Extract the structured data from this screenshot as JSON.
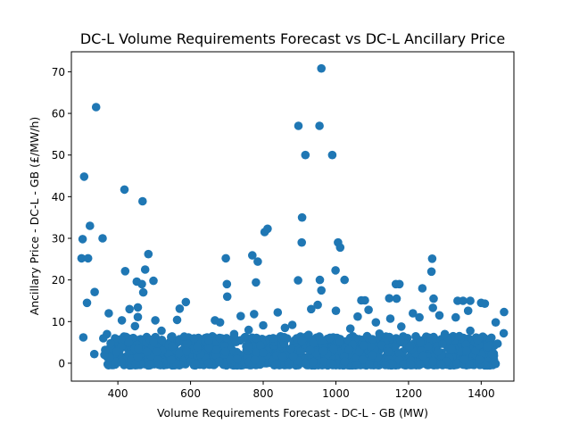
{
  "chart_data": {
    "type": "scatter",
    "title": "DC-L Volume Requirements Forecast vs DC-L Ancillary Price",
    "xlabel": "Volume Requirements Forecast - DC-L - GB (MW)",
    "ylabel": "Ancillary Price - DC-L - GB (£/MW/h)",
    "xlim": [
      272,
      1490
    ],
    "ylim": [
      -4.3,
      74.8
    ],
    "x_ticks": [
      400,
      600,
      800,
      1000,
      1200,
      1400
    ],
    "x_tick_labels": [
      "400",
      "600",
      "800",
      "1000",
      "1200",
      "1400"
    ],
    "y_ticks": [
      0,
      10,
      20,
      30,
      40,
      50,
      60,
      70
    ],
    "y_tick_labels": [
      "0",
      "10",
      "20",
      "30",
      "40",
      "50",
      "60",
      "70"
    ],
    "grid": false,
    "marker_color": "#1f77b4",
    "points": [
      [
        307,
        44.8
      ],
      [
        340,
        61.5
      ],
      [
        418,
        41.7
      ],
      [
        468,
        38.9
      ],
      [
        960,
        70.8
      ],
      [
        897,
        57.0
      ],
      [
        955,
        57.0
      ],
      [
        916,
        50.0
      ],
      [
        990,
        50.0
      ],
      [
        907,
        35.0
      ],
      [
        303,
        29.8
      ],
      [
        323,
        33.0
      ],
      [
        358,
        30.0
      ],
      [
        300,
        25.2
      ],
      [
        318,
        25.2
      ],
      [
        804,
        31.5
      ],
      [
        812,
        32.3
      ],
      [
        906,
        29.0
      ],
      [
        1006,
        29.0
      ],
      [
        1012,
        27.8
      ],
      [
        484,
        26.2
      ],
      [
        697,
        25.2
      ],
      [
        770,
        25.9
      ],
      [
        785,
        24.4
      ],
      [
        1265,
        25.1
      ],
      [
        1263,
        22.0
      ],
      [
        420,
        22.1
      ],
      [
        475,
        22.5
      ],
      [
        999,
        22.3
      ],
      [
        452,
        19.6
      ],
      [
        466,
        19.0
      ],
      [
        498,
        19.8
      ],
      [
        700,
        19.0
      ],
      [
        780,
        19.4
      ],
      [
        896,
        19.9
      ],
      [
        956,
        20.0
      ],
      [
        1024,
        20.0
      ],
      [
        1165,
        19.0
      ],
      [
        1175,
        19.0
      ],
      [
        1238,
        18.0
      ],
      [
        470,
        17.0
      ],
      [
        336,
        17.1
      ],
      [
        960,
        17.5
      ],
      [
        1167,
        15.5
      ],
      [
        1269,
        15.5
      ],
      [
        701,
        16.0
      ],
      [
        315,
        14.5
      ],
      [
        587,
        14.7
      ],
      [
        1070,
        15.1
      ],
      [
        1080,
        15.1
      ],
      [
        1147,
        15.6
      ],
      [
        1335,
        15.0
      ],
      [
        1350,
        15.0
      ],
      [
        1370,
        15.0
      ],
      [
        1400,
        14.5
      ],
      [
        1410,
        14.3
      ],
      [
        1463,
        12.3
      ],
      [
        455,
        13.4
      ],
      [
        432,
        13.0
      ],
      [
        570,
        13.1
      ],
      [
        932,
        13.0
      ],
      [
        950,
        14.0
      ],
      [
        1000,
        12.6
      ],
      [
        1090,
        12.8
      ],
      [
        1267,
        13.3
      ],
      [
        1364,
        12.6
      ],
      [
        1285,
        11.5
      ],
      [
        375,
        12.0
      ],
      [
        411,
        10.3
      ],
      [
        455,
        11.1
      ],
      [
        503,
        10.3
      ],
      [
        563,
        10.4
      ],
      [
        667,
        10.3
      ],
      [
        681,
        9.8
      ],
      [
        738,
        11.3
      ],
      [
        775,
        11.8
      ],
      [
        840,
        12.2
      ],
      [
        1060,
        11.2
      ],
      [
        1110,
        9.8
      ],
      [
        1150,
        10.7
      ],
      [
        1212,
        12.0
      ],
      [
        1230,
        11.0
      ],
      [
        1330,
        11.0
      ],
      [
        1440,
        9.8
      ],
      [
        1462,
        7.2
      ],
      [
        1445,
        4.7
      ],
      [
        1430,
        2.1
      ],
      [
        1395,
        0.8
      ],
      [
        370,
        7.0
      ],
      [
        392,
        6.0
      ],
      [
        360,
        6.0
      ],
      [
        305,
        6.2
      ],
      [
        335,
        2.2
      ],
      [
        363,
        2.0
      ],
      [
        380,
        4.8
      ],
      [
        365,
        3.2
      ],
      [
        430,
        5.0
      ],
      [
        447,
        8.9
      ],
      [
        520,
        7.8
      ],
      [
        610,
        6.0
      ],
      [
        650,
        5.5
      ],
      [
        720,
        7.0
      ],
      [
        760,
        8.0
      ],
      [
        800,
        9.1
      ],
      [
        860,
        8.5
      ],
      [
        880,
        9.2
      ],
      [
        925,
        6.8
      ],
      [
        1040,
        8.3
      ],
      [
        1120,
        7.1
      ],
      [
        1180,
        8.8
      ],
      [
        1300,
        7.0
      ],
      [
        1340,
        6.5
      ],
      [
        1370,
        7.8
      ],
      [
        1390,
        5.5
      ]
    ],
    "dense_band": {
      "x_range": [
        370,
        1440
      ],
      "y_range": [
        -0.5,
        6.5
      ],
      "approx_count": 1400,
      "note": "dense cloud of overlapping markers"
    }
  }
}
